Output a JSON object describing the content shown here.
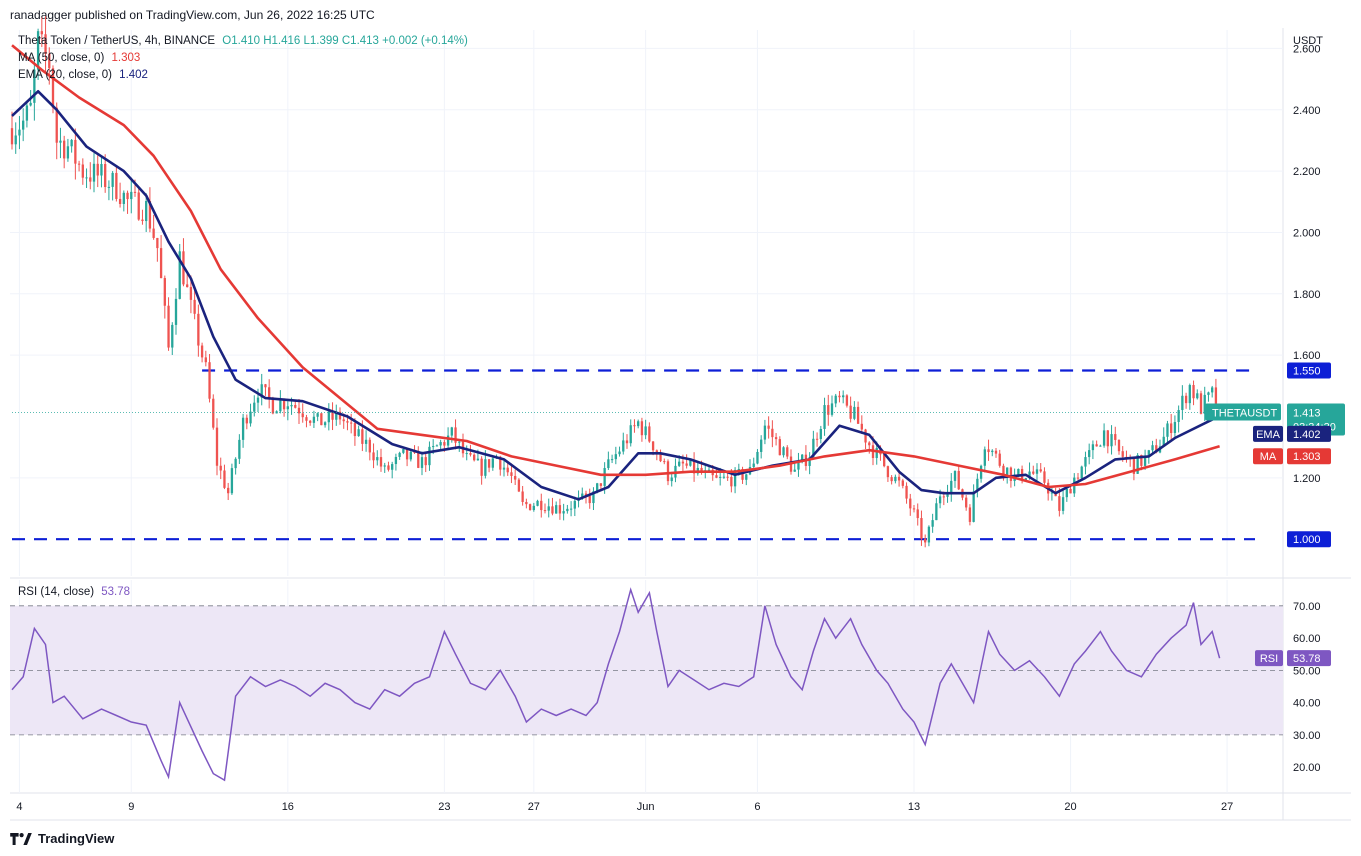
{
  "header": {
    "published": "ranadagger published on TradingView.com, Jun 26, 2022 16:25 UTC"
  },
  "legend": {
    "symbol": "Theta Token / TetherUS, 4h, BINANCE",
    "ohlc": "O1.410  H1.416  L1.399  C1.413  +0.002 (+0.14%)",
    "ma_label": "MA (50, close, 0)",
    "ma_value": "1.303",
    "ema_label": "EMA (20, close, 0)",
    "ema_value": "1.402",
    "rsi_label": "RSI (14, close)",
    "rsi_value": "53.78"
  },
  "footer": {
    "brand": "TradingView"
  },
  "colors": {
    "ema": "#1a237e",
    "ma": "#e53935",
    "up": "#26a69a",
    "down": "#ef5350",
    "level": "#0d1fd6",
    "rsi": "#7e57c2",
    "rsi_band": "#ede7f6"
  },
  "chart_data": {
    "type": "candlestick",
    "title": "Theta Token / TetherUS, 4h, BINANCE",
    "y_unit": "USDT",
    "ylim": [
      0.88,
      2.66
    ],
    "yticks": [
      "2.600",
      "2.400",
      "2.200",
      "2.000",
      "1.800",
      "1.600",
      "1.200"
    ],
    "x_ticks": [
      "4",
      "9",
      "16",
      "23",
      "27",
      "Jun",
      "6",
      "13",
      "20",
      "27"
    ],
    "x_tick_dates": [
      "2022-05-04",
      "2022-05-09",
      "2022-05-16",
      "2022-05-23",
      "2022-05-27",
      "2022-06-01",
      "2022-06-06",
      "2022-06-13",
      "2022-06-20",
      "2022-06-27"
    ],
    "x_range": [
      "2022-05-03 16:00",
      "2022-06-29 12:00"
    ],
    "close_path": [
      [
        "2022-05-03 16:00",
        2.34
      ],
      [
        "2022-05-04 04:00",
        2.36
      ],
      [
        "2022-05-04 12:00",
        2.4
      ],
      [
        "2022-05-04 20:00",
        2.62
      ],
      [
        "2022-05-05 08:00",
        2.55
      ],
      [
        "2022-05-05 16:00",
        2.3
      ],
      [
        "2022-05-06 04:00",
        2.28
      ],
      [
        "2022-05-06 20:00",
        2.2
      ],
      [
        "2022-05-07 16:00",
        2.18
      ],
      [
        "2022-05-08 08:00",
        2.15
      ],
      [
        "2022-05-08 20:00",
        2.1
      ],
      [
        "2022-05-09 16:00",
        2.08
      ],
      [
        "2022-05-10 04:00",
        1.95
      ],
      [
        "2022-05-10 16:00",
        1.62
      ],
      [
        "2022-05-11 04:00",
        1.92
      ],
      [
        "2022-05-11 16:00",
        1.75
      ],
      [
        "2022-05-12 08:00",
        1.55
      ],
      [
        "2022-05-12 20:00",
        1.25
      ],
      [
        "2022-05-13 08:00",
        1.15
      ],
      [
        "2022-05-14 00:00",
        1.38
      ],
      [
        "2022-05-14 16:00",
        1.49
      ],
      [
        "2022-05-15 08:00",
        1.44
      ],
      [
        "2022-05-16 00:00",
        1.45
      ],
      [
        "2022-05-16 16:00",
        1.42
      ],
      [
        "2022-05-17 08:00",
        1.38
      ],
      [
        "2022-05-18 08:00",
        1.4
      ],
      [
        "2022-05-19 00:00",
        1.34
      ],
      [
        "2022-05-19 16:00",
        1.3
      ],
      [
        "2022-05-20 08:00",
        1.22
      ],
      [
        "2022-05-21 04:00",
        1.27
      ],
      [
        "2022-05-22 00:00",
        1.25
      ],
      [
        "2022-05-22 16:00",
        1.3
      ],
      [
        "2022-05-23 08:00",
        1.34
      ],
      [
        "2022-05-24 00:00",
        1.26
      ],
      [
        "2022-05-24 16:00",
        1.23
      ],
      [
        "2022-05-25 08:00",
        1.27
      ],
      [
        "2022-05-26 00:00",
        1.2
      ],
      [
        "2022-05-26 12:00",
        1.11
      ],
      [
        "2022-05-27 08:00",
        1.12
      ],
      [
        "2022-05-28 04:00",
        1.1
      ],
      [
        "2022-05-29 00:00",
        1.12
      ],
      [
        "2022-05-29 16:00",
        1.14
      ],
      [
        "2022-05-30 08:00",
        1.24
      ],
      [
        "2022-05-31 00:00",
        1.31
      ],
      [
        "2022-05-31 16:00",
        1.38
      ],
      [
        "2022-06-01 08:00",
        1.31
      ],
      [
        "2022-06-02 00:00",
        1.21
      ],
      [
        "2022-06-02 16:00",
        1.24
      ],
      [
        "2022-06-03 08:00",
        1.22
      ],
      [
        "2022-06-04 04:00",
        1.19
      ],
      [
        "2022-06-05 00:00",
        1.2
      ],
      [
        "2022-06-05 16:00",
        1.22
      ],
      [
        "2022-06-06 08:00",
        1.37
      ],
      [
        "2022-06-07 00:00",
        1.3
      ],
      [
        "2022-06-07 16:00",
        1.22
      ],
      [
        "2022-06-08 08:00",
        1.28
      ],
      [
        "2022-06-09 00:00",
        1.42
      ],
      [
        "2022-06-09 16:00",
        1.45
      ],
      [
        "2022-06-10 08:00",
        1.4
      ],
      [
        "2022-06-11 00:00",
        1.31
      ],
      [
        "2022-06-11 16:00",
        1.24
      ],
      [
        "2022-06-12 08:00",
        1.18
      ],
      [
        "2022-06-13 00:00",
        1.08
      ],
      [
        "2022-06-13 12:00",
        0.98
      ],
      [
        "2022-06-14 04:00",
        1.15
      ],
      [
        "2022-06-14 20:00",
        1.2
      ],
      [
        "2022-06-15 12:00",
        1.08
      ],
      [
        "2022-06-16 04:00",
        1.32
      ],
      [
        "2022-06-16 20:00",
        1.25
      ],
      [
        "2022-06-17 12:00",
        1.2
      ],
      [
        "2022-06-18 04:00",
        1.22
      ],
      [
        "2022-06-18 20:00",
        1.19
      ],
      [
        "2022-06-19 12:00",
        1.1
      ],
      [
        "2022-06-20 04:00",
        1.2
      ],
      [
        "2022-06-20 20:00",
        1.27
      ],
      [
        "2022-06-21 12:00",
        1.35
      ],
      [
        "2022-06-22 04:00",
        1.28
      ],
      [
        "2022-06-22 20:00",
        1.24
      ],
      [
        "2022-06-23 12:00",
        1.27
      ],
      [
        "2022-06-24 04:00",
        1.33
      ],
      [
        "2022-06-24 20:00",
        1.42
      ],
      [
        "2022-06-25 08:00",
        1.5
      ],
      [
        "2022-06-25 20:00",
        1.43
      ],
      [
        "2022-06-26 08:00",
        1.47
      ],
      [
        "2022-06-26 16:00",
        1.413
      ]
    ],
    "series": [
      {
        "name": "EMA",
        "values": [
          [
            "2022-05-03 16:00",
            2.38
          ],
          [
            "2022-05-04 20:00",
            2.46
          ],
          [
            "2022-05-05 16:00",
            2.4
          ],
          [
            "2022-05-07 00:00",
            2.28
          ],
          [
            "2022-05-08 16:00",
            2.2
          ],
          [
            "2022-05-09 16:00",
            2.12
          ],
          [
            "2022-05-10 16:00",
            1.97
          ],
          [
            "2022-05-11 16:00",
            1.85
          ],
          [
            "2022-05-12 16:00",
            1.66
          ],
          [
            "2022-05-13 16:00",
            1.52
          ],
          [
            "2022-05-15 00:00",
            1.46
          ],
          [
            "2022-05-16 16:00",
            1.45
          ],
          [
            "2022-05-18 16:00",
            1.4
          ],
          [
            "2022-05-20 16:00",
            1.31
          ],
          [
            "2022-05-22 00:00",
            1.28
          ],
          [
            "2022-05-23 16:00",
            1.3
          ],
          [
            "2022-05-25 16:00",
            1.26
          ],
          [
            "2022-05-27 08:00",
            1.17
          ],
          [
            "2022-05-29 00:00",
            1.13
          ],
          [
            "2022-05-30 08:00",
            1.17
          ],
          [
            "2022-05-31 16:00",
            1.28
          ],
          [
            "2022-06-01 16:00",
            1.28
          ],
          [
            "2022-06-03 00:00",
            1.26
          ],
          [
            "2022-06-05 00:00",
            1.21
          ],
          [
            "2022-06-06 16:00",
            1.24
          ],
          [
            "2022-06-08 08:00",
            1.26
          ],
          [
            "2022-06-09 16:00",
            1.37
          ],
          [
            "2022-06-11 00:00",
            1.34
          ],
          [
            "2022-06-12 08:00",
            1.22
          ],
          [
            "2022-06-13 08:00",
            1.16
          ],
          [
            "2022-06-14 08:00",
            1.15
          ],
          [
            "2022-06-15 16:00",
            1.15
          ],
          [
            "2022-06-16 16:00",
            1.2
          ],
          [
            "2022-06-18 00:00",
            1.21
          ],
          [
            "2022-06-19 08:00",
            1.15
          ],
          [
            "2022-06-20 16:00",
            1.2
          ],
          [
            "2022-06-22 00:00",
            1.26
          ],
          [
            "2022-06-23 12:00",
            1.27
          ],
          [
            "2022-06-24 16:00",
            1.33
          ],
          [
            "2022-06-26 16:00",
            1.402
          ]
        ]
      },
      {
        "name": "MA",
        "values": [
          [
            "2022-05-03 16:00",
            2.61
          ],
          [
            "2022-05-05 00:00",
            2.53
          ],
          [
            "2022-05-06 16:00",
            2.44
          ],
          [
            "2022-05-08 16:00",
            2.35
          ],
          [
            "2022-05-10 00:00",
            2.25
          ],
          [
            "2022-05-11 16:00",
            2.07
          ],
          [
            "2022-05-13 00:00",
            1.88
          ],
          [
            "2022-05-14 16:00",
            1.72
          ],
          [
            "2022-05-16 16:00",
            1.56
          ],
          [
            "2022-05-18 16:00",
            1.44
          ],
          [
            "2022-05-20 00:00",
            1.36
          ],
          [
            "2022-05-22 00:00",
            1.34
          ],
          [
            "2022-05-24 00:00",
            1.32
          ],
          [
            "2022-05-26 00:00",
            1.27
          ],
          [
            "2022-05-28 00:00",
            1.24
          ],
          [
            "2022-05-30 00:00",
            1.21
          ],
          [
            "2022-06-01 00:00",
            1.21
          ],
          [
            "2022-06-03 00:00",
            1.22
          ],
          [
            "2022-06-05 00:00",
            1.22
          ],
          [
            "2022-06-07 00:00",
            1.24
          ],
          [
            "2022-06-09 00:00",
            1.27
          ],
          [
            "2022-06-11 00:00",
            1.29
          ],
          [
            "2022-06-13 00:00",
            1.27
          ],
          [
            "2022-06-15 00:00",
            1.24
          ],
          [
            "2022-06-17 00:00",
            1.21
          ],
          [
            "2022-06-19 00:00",
            1.17
          ],
          [
            "2022-06-20 16:00",
            1.18
          ],
          [
            "2022-06-22 16:00",
            1.22
          ],
          [
            "2022-06-24 16:00",
            1.26
          ],
          [
            "2022-06-26 16:00",
            1.303
          ]
        ]
      }
    ],
    "levels": [
      {
        "label": "1.550",
        "value": 1.55,
        "start": "2022-05-12 04:00"
      },
      {
        "label": "1.000",
        "value": 1.0,
        "start": "2022-05-03 16:00"
      }
    ],
    "last_price": {
      "symbol": "THETAUSDT",
      "value": "1.413",
      "countdown": "03:34:30"
    },
    "ema_tag": {
      "label": "EMA",
      "value": "1.402"
    },
    "ma_tag": {
      "label": "MA",
      "value": "1.303"
    },
    "rsi": {
      "ylim": [
        12,
        78
      ],
      "yticks": [
        "70.00",
        "60.00",
        "50.00",
        "40.00",
        "30.00",
        "20.00"
      ],
      "band": [
        30,
        70
      ],
      "mid": 50,
      "tag": {
        "label": "RSI",
        "value": "53.78"
      },
      "values": [
        [
          "2022-05-03 16:00",
          44
        ],
        [
          "2022-05-04 04:00",
          48
        ],
        [
          "2022-05-04 16:00",
          63
        ],
        [
          "2022-05-05 04:00",
          58
        ],
        [
          "2022-05-05 12:00",
          40
        ],
        [
          "2022-05-06 00:00",
          42
        ],
        [
          "2022-05-06 20:00",
          35
        ],
        [
          "2022-05-07 16:00",
          38
        ],
        [
          "2022-05-08 08:00",
          36
        ],
        [
          "2022-05-09 00:00",
          34
        ],
        [
          "2022-05-09 16:00",
          33
        ],
        [
          "2022-05-10 08:00",
          22
        ],
        [
          "2022-05-10 16:00",
          17
        ],
        [
          "2022-05-11 04:00",
          40
        ],
        [
          "2022-05-11 12:00",
          35
        ],
        [
          "2022-05-12 04:00",
          25
        ],
        [
          "2022-05-12 16:00",
          18
        ],
        [
          "2022-05-13 04:00",
          16
        ],
        [
          "2022-05-13 16:00",
          42
        ],
        [
          "2022-05-14 08:00",
          48
        ],
        [
          "2022-05-15 00:00",
          45
        ],
        [
          "2022-05-15 16:00",
          47
        ],
        [
          "2022-05-16 08:00",
          45
        ],
        [
          "2022-05-17 00:00",
          42
        ],
        [
          "2022-05-17 16:00",
          46
        ],
        [
          "2022-05-18 08:00",
          44
        ],
        [
          "2022-05-19 00:00",
          40
        ],
        [
          "2022-05-19 16:00",
          38
        ],
        [
          "2022-05-20 08:00",
          44
        ],
        [
          "2022-05-21 00:00",
          42
        ],
        [
          "2022-05-21 16:00",
          46
        ],
        [
          "2022-05-22 08:00",
          48
        ],
        [
          "2022-05-23 00:00",
          62
        ],
        [
          "2022-05-23 12:00",
          55
        ],
        [
          "2022-05-24 04:00",
          46
        ],
        [
          "2022-05-24 20:00",
          44
        ],
        [
          "2022-05-25 12:00",
          50
        ],
        [
          "2022-05-26 04:00",
          42
        ],
        [
          "2022-05-26 16:00",
          34
        ],
        [
          "2022-05-27 08:00",
          38
        ],
        [
          "2022-05-28 00:00",
          36
        ],
        [
          "2022-05-28 16:00",
          38
        ],
        [
          "2022-05-29 08:00",
          36
        ],
        [
          "2022-05-29 20:00",
          40
        ],
        [
          "2022-05-30 08:00",
          52
        ],
        [
          "2022-05-30 20:00",
          62
        ],
        [
          "2022-05-31 08:00",
          75
        ],
        [
          "2022-05-31 16:00",
          68
        ],
        [
          "2022-06-01 04:00",
          74
        ],
        [
          "2022-06-01 12:00",
          62
        ],
        [
          "2022-06-02 00:00",
          45
        ],
        [
          "2022-06-02 12:00",
          50
        ],
        [
          "2022-06-03 04:00",
          47
        ],
        [
          "2022-06-03 20:00",
          44
        ],
        [
          "2022-06-04 12:00",
          46
        ],
        [
          "2022-06-05 04:00",
          45
        ],
        [
          "2022-06-05 20:00",
          48
        ],
        [
          "2022-06-06 08:00",
          70
        ],
        [
          "2022-06-06 20:00",
          58
        ],
        [
          "2022-06-07 12:00",
          48
        ],
        [
          "2022-06-08 00:00",
          44
        ],
        [
          "2022-06-08 12:00",
          56
        ],
        [
          "2022-06-09 00:00",
          66
        ],
        [
          "2022-06-09 12:00",
          60
        ],
        [
          "2022-06-10 04:00",
          66
        ],
        [
          "2022-06-10 16:00",
          58
        ],
        [
          "2022-06-11 08:00",
          50
        ],
        [
          "2022-06-11 20:00",
          46
        ],
        [
          "2022-06-12 12:00",
          38
        ],
        [
          "2022-06-13 00:00",
          34
        ],
        [
          "2022-06-13 12:00",
          27
        ],
        [
          "2022-06-14 04:00",
          46
        ],
        [
          "2022-06-14 16:00",
          52
        ],
        [
          "2022-06-15 04:00",
          46
        ],
        [
          "2022-06-15 16:00",
          40
        ],
        [
          "2022-06-16 08:00",
          62
        ],
        [
          "2022-06-16 20:00",
          55
        ],
        [
          "2022-06-17 12:00",
          50
        ],
        [
          "2022-06-18 04:00",
          53
        ],
        [
          "2022-06-18 20:00",
          48
        ],
        [
          "2022-06-19 12:00",
          42
        ],
        [
          "2022-06-20 04:00",
          52
        ],
        [
          "2022-06-20 16:00",
          56
        ],
        [
          "2022-06-21 08:00",
          62
        ],
        [
          "2022-06-21 20:00",
          56
        ],
        [
          "2022-06-22 12:00",
          50
        ],
        [
          "2022-06-23 04:00",
          48
        ],
        [
          "2022-06-23 20:00",
          55
        ],
        [
          "2022-06-24 12:00",
          60
        ],
        [
          "2022-06-25 04:00",
          64
        ],
        [
          "2022-06-25 12:00",
          71
        ],
        [
          "2022-06-25 20:00",
          58
        ],
        [
          "2022-06-26 08:00",
          62
        ],
        [
          "2022-06-26 16:00",
          53.78
        ]
      ]
    }
  }
}
